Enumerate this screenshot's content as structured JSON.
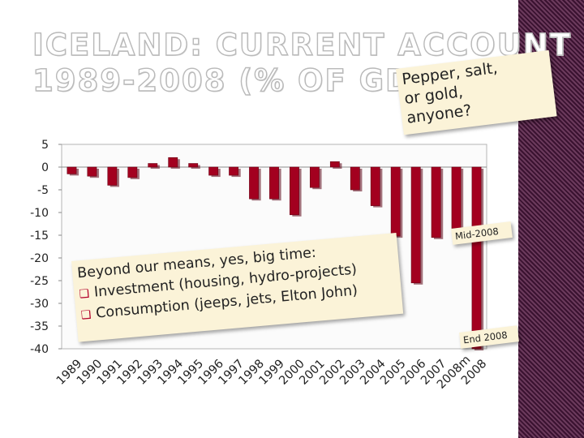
{
  "slide": {
    "title_line1": "ICELAND: CURRENT ACCOUNT",
    "title_line2": "1989-2008 (% OF GDP)",
    "note_pepper": [
      "Pepper, salt,",
      "or gold,",
      "anyone?"
    ],
    "note_beyond": {
      "heading": "Beyond our means, yes, big time:",
      "bullets": [
        "Investment (housing, hydro-projects)",
        "Consumption (jeeps, jets, Elton John)"
      ]
    },
    "note_mid": "Mid-2008",
    "note_end": "End 2008",
    "accent_color": "#b3002a"
  },
  "chart_data": {
    "type": "bar",
    "categories": [
      "1989",
      "1990",
      "1991",
      "1992",
      "1993",
      "1994",
      "1995",
      "1996",
      "1997",
      "1998",
      "1999",
      "2000",
      "2001",
      "2002",
      "2003",
      "2004",
      "2005",
      "2006",
      "2007",
      "2008m",
      "2008"
    ],
    "values": [
      -1.5,
      -2.0,
      -4.0,
      -2.3,
      0.8,
      2.1,
      0.8,
      -1.8,
      -1.8,
      -7.0,
      -7.0,
      -10.5,
      -4.5,
      1.2,
      -5.0,
      -8.5,
      -15.2,
      -25.5,
      -15.5,
      -13.5,
      -40.0
    ],
    "yticks": [
      5,
      0,
      -5,
      -10,
      -15,
      -20,
      -25,
      -30,
      -35,
      -40
    ],
    "ylim": [
      -40,
      5
    ],
    "bar_color": "#a3001f",
    "grid": false
  }
}
